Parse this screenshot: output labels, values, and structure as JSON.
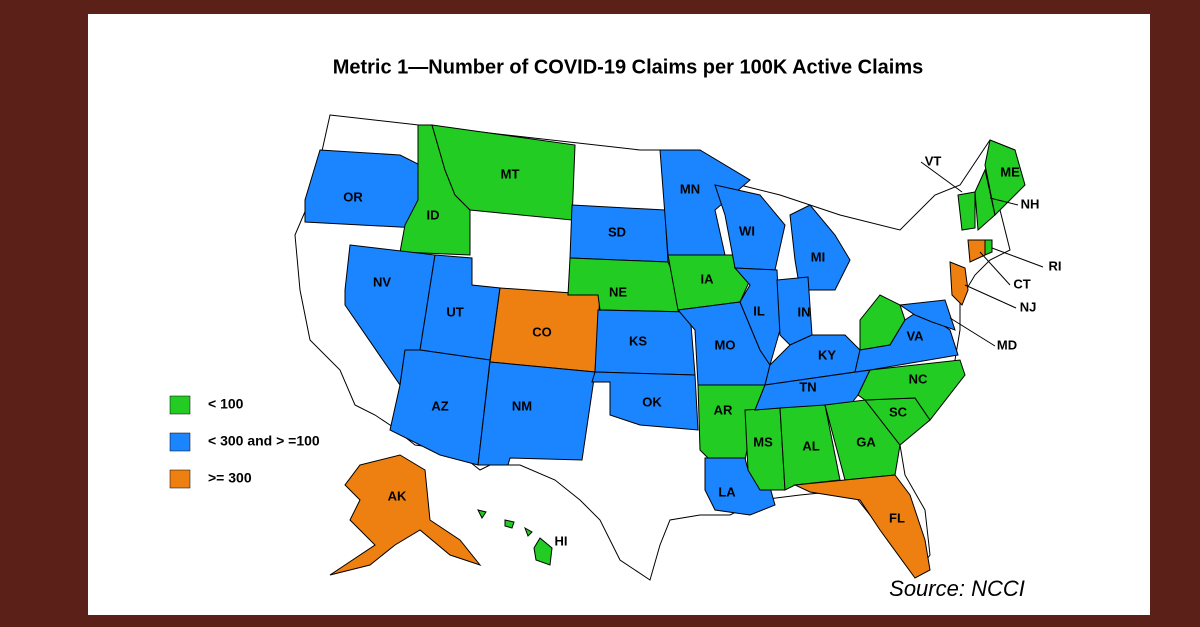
{
  "title": "Metric 1—Number of COVID-19 Claims per 100K Active Claims",
  "legend": [
    {
      "label": "< 100",
      "color": "#22cc22"
    },
    {
      "label": "< 300 and > =100",
      "color": "#1a85ff"
    },
    {
      "label": ">= 300",
      "color": "#ee8011"
    }
  ],
  "states": [
    {
      "abbr": "OR",
      "category": 1
    },
    {
      "abbr": "ID",
      "category": 0
    },
    {
      "abbr": "MT",
      "category": 0
    },
    {
      "abbr": "NV",
      "category": 1
    },
    {
      "abbr": "UT",
      "category": 1
    },
    {
      "abbr": "CO",
      "category": 2
    },
    {
      "abbr": "AZ",
      "category": 1
    },
    {
      "abbr": "NM",
      "category": 1
    },
    {
      "abbr": "SD",
      "category": 1
    },
    {
      "abbr": "NE",
      "category": 0
    },
    {
      "abbr": "KS",
      "category": 1
    },
    {
      "abbr": "OK",
      "category": 1
    },
    {
      "abbr": "MN",
      "category": 1
    },
    {
      "abbr": "IA",
      "category": 0
    },
    {
      "abbr": "MO",
      "category": 1
    },
    {
      "abbr": "AR",
      "category": 0
    },
    {
      "abbr": "LA",
      "category": 1
    },
    {
      "abbr": "WI",
      "category": 1
    },
    {
      "abbr": "IL",
      "category": 1
    },
    {
      "abbr": "MS",
      "category": 0
    },
    {
      "abbr": "MI",
      "category": 1
    },
    {
      "abbr": "IN",
      "category": 1
    },
    {
      "abbr": "KY",
      "category": 1
    },
    {
      "abbr": "TN",
      "category": 1
    },
    {
      "abbr": "AL",
      "category": 0
    },
    {
      "abbr": "GA",
      "category": 0
    },
    {
      "abbr": "FL",
      "category": 2
    },
    {
      "abbr": "SC",
      "category": 0
    },
    {
      "abbr": "NC",
      "category": 0
    },
    {
      "abbr": null,
      "category": 0
    },
    {
      "abbr": "VA",
      "category": 1
    },
    {
      "abbr": "MD",
      "category": 1
    },
    {
      "abbr": "NJ",
      "category": 2
    },
    {
      "abbr": "CT",
      "category": 2
    },
    {
      "abbr": "RI",
      "category": 0
    },
    {
      "abbr": "VT",
      "category": 0
    },
    {
      "abbr": "NH",
      "category": 0
    },
    {
      "abbr": "ME",
      "category": 0
    },
    {
      "abbr": "AK",
      "category": 2
    },
    {
      "abbr": "HI",
      "category": 0
    }
  ],
  "source": "Source: NCCI"
}
